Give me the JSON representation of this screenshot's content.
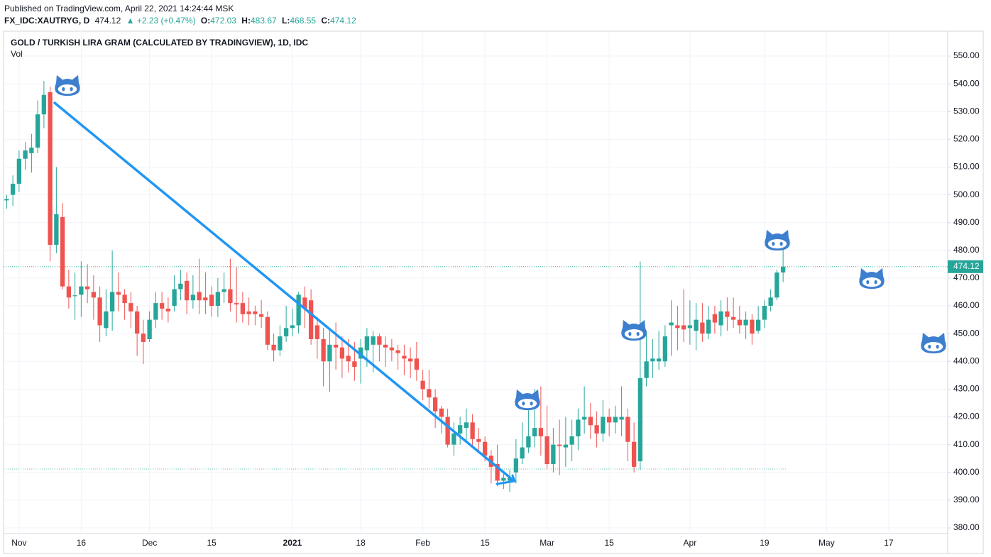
{
  "header": {
    "published": "Published on TradingView.com, April 22, 2021 14:24:44 MSK",
    "symbol": "FX_IDC:XAUTRYG, D",
    "price": "474.12",
    "change": "▲ +2.23 (+0.47%)",
    "o_label": "O:",
    "o": "472.03",
    "h_label": "H:",
    "h": "483.67",
    "l_label": "L:",
    "l": "468.55",
    "c_label": "C:",
    "c": "474.12"
  },
  "chart_data": {
    "type": "candlestick",
    "title": "GOLD / TURKISH LIRA GRAM (CALCULATED BY TRADINGVIEW), 1D, IDC",
    "subtitle": "Vol",
    "up_color": "#26a69a",
    "down_color": "#ef5350",
    "categories": [
      null,
      null,
      "Nov",
      null,
      null,
      null,
      null,
      null,
      null,
      null,
      null,
      null,
      "16",
      null,
      null,
      null,
      null,
      null,
      null,
      null,
      null,
      null,
      null,
      "Dec",
      null,
      null,
      null,
      null,
      null,
      null,
      null,
      null,
      null,
      "15",
      null,
      null,
      null,
      null,
      null,
      null,
      null,
      null,
      null,
      null,
      null,
      null,
      "2021",
      null,
      null,
      null,
      null,
      null,
      null,
      null,
      null,
      null,
      null,
      "18",
      null,
      null,
      null,
      null,
      null,
      null,
      null,
      null,
      null,
      "Feb",
      null,
      null,
      null,
      null,
      null,
      null,
      null,
      null,
      null,
      "15",
      null,
      null,
      null,
      null,
      null,
      null,
      null,
      null,
      null,
      "Mar",
      null,
      null,
      null,
      null,
      null,
      null,
      null,
      null,
      null,
      "15",
      null,
      null,
      null,
      null,
      null,
      null,
      null,
      null,
      null,
      null,
      null,
      null,
      "Apr",
      null,
      null,
      null,
      null,
      null,
      null,
      null,
      null,
      null,
      null,
      null,
      "19",
      null,
      null,
      null,
      null,
      null,
      null,
      null,
      null,
      null,
      "May",
      null,
      null,
      null,
      null,
      null,
      null,
      null,
      null,
      null,
      "17",
      null,
      null,
      null,
      null,
      null,
      null,
      null,
      null,
      null
    ],
    "open": [
      498,
      500,
      504,
      513,
      515,
      517,
      529,
      537,
      482,
      492,
      467,
      463.5,
      464,
      467,
      465,
      463,
      452,
      458,
      465,
      464,
      461,
      458,
      450,
      448,
      455,
      461,
      459,
      460,
      466,
      469,
      462,
      465,
      463,
      464,
      460,
      465,
      466,
      461,
      461,
      458,
      458,
      457,
      456,
      446,
      444,
      449,
      452,
      453,
      463,
      462,
      453,
      448,
      440,
      446,
      445,
      442,
      440,
      441,
      444,
      446,
      449,
      446,
      445,
      444,
      442,
      441,
      441,
      433,
      430,
      427,
      423,
      420,
      410,
      414,
      416,
      418,
      412,
      411,
      406,
      403,
      397,
      397,
      400,
      405,
      409,
      413,
      416,
      413,
      403,
      410,
      409,
      410,
      413,
      419,
      420,
      417,
      414,
      420,
      418,
      419,
      420,
      411,
      404,
      434,
      440,
      440,
      440,
      453,
      453,
      453,
      452,
      451,
      454,
      450,
      457,
      453,
      458,
      456,
      455,
      453,
      455,
      451,
      455,
      460,
      463,
      472.03,
      null,
      null,
      null,
      null,
      null,
      null,
      null,
      null,
      null,
      null,
      null,
      null,
      null,
      null,
      null,
      null,
      null,
      null,
      null,
      null,
      null,
      null,
      null,
      null,
      null,
      null
    ],
    "high": [
      500,
      507,
      516,
      519,
      522,
      534,
      541,
      539,
      510,
      497,
      473,
      472,
      476,
      475,
      471,
      467,
      466,
      480,
      472,
      466,
      465,
      460,
      455,
      458,
      465,
      465,
      463,
      471,
      473,
      472,
      471,
      477,
      472,
      467,
      470,
      472,
      477,
      474,
      465,
      463,
      460,
      462,
      458,
      450,
      453,
      460,
      459,
      465,
      467,
      466,
      456,
      452,
      452,
      454,
      449,
      448,
      447,
      448,
      452,
      451,
      450,
      449,
      448,
      446,
      446,
      445,
      447,
      437,
      437,
      430,
      424,
      423,
      418,
      420,
      423,
      421,
      416,
      413,
      408,
      410,
      400,
      401,
      412,
      418,
      426,
      430,
      431,
      424,
      416,
      419,
      420,
      419,
      423,
      431,
      425,
      422,
      426,
      423,
      424,
      431,
      423,
      418,
      476,
      451,
      448,
      451,
      453,
      462,
      460,
      466,
      462,
      461,
      461,
      460,
      460,
      462,
      463,
      463,
      460,
      458,
      457,
      460,
      462,
      466,
      473,
      483.67,
      null,
      null,
      null,
      null,
      null,
      null,
      null,
      null,
      null,
      null,
      null,
      null,
      null,
      null,
      null,
      null,
      null,
      null,
      null,
      null,
      null,
      null,
      null,
      null,
      null,
      null
    ],
    "low": [
      495,
      496,
      501,
      509,
      508,
      515,
      524,
      476,
      479,
      466,
      459,
      455,
      456,
      461,
      455,
      447,
      449,
      451,
      458,
      455,
      452,
      442,
      439,
      447,
      452,
      455,
      454,
      458,
      462,
      457,
      459,
      457,
      457,
      456,
      456,
      461,
      458,
      454,
      454,
      453,
      453,
      452,
      444,
      440,
      442,
      447,
      449,
      450,
      452,
      446,
      441,
      431,
      429,
      437,
      434,
      436,
      433,
      432,
      438,
      436,
      440,
      438,
      440,
      437,
      435,
      434,
      433,
      426,
      423,
      416,
      414,
      409,
      406,
      410,
      411,
      409,
      407,
      404,
      396,
      395,
      394,
      393,
      396,
      403,
      407,
      409,
      406,
      401,
      400,
      399,
      402,
      404,
      408,
      414,
      412,
      409,
      411,
      413,
      414,
      413,
      404,
      400,
      401,
      431,
      434,
      437,
      438,
      442,
      444,
      447,
      446,
      444,
      447,
      448,
      450,
      449,
      451,
      452,
      450,
      448,
      446,
      450,
      452,
      458,
      462,
      468.55,
      null,
      null,
      null,
      null,
      null,
      null,
      null,
      null,
      null,
      null,
      null,
      null,
      null,
      null,
      null,
      null,
      null,
      null,
      null,
      null,
      null,
      null,
      null,
      null,
      null,
      null
    ],
    "close": [
      498.5,
      504,
      513,
      516,
      517,
      529,
      536,
      482,
      493,
      467,
      463,
      463.8,
      467,
      466,
      463,
      453,
      458,
      465,
      464,
      461,
      458,
      450,
      447,
      455,
      461,
      459,
      458,
      466,
      468,
      462,
      464,
      462,
      462,
      460,
      465,
      466,
      461,
      460.5,
      457,
      457,
      457,
      456,
      446,
      444,
      449,
      452,
      453,
      464,
      459,
      448,
      448,
      440,
      446,
      445,
      441,
      440,
      438,
      445,
      449,
      449,
      446,
      445,
      444,
      443,
      441,
      440,
      437,
      430,
      427,
      422,
      420,
      410,
      414,
      417,
      418,
      412,
      411,
      406,
      402,
      397,
      398,
      398,
      405,
      409,
      413,
      416,
      413,
      403,
      410,
      409.5,
      410,
      413,
      419,
      420,
      417,
      414,
      420,
      418,
      420,
      420,
      411,
      402,
      434,
      440,
      441,
      441,
      449,
      454,
      452,
      451.5,
      453,
      455,
      450,
      455,
      454,
      458,
      456,
      455,
      453,
      455,
      450,
      455,
      460,
      463,
      472,
      474.12,
      null,
      null,
      null,
      null,
      null,
      null,
      null,
      null,
      null,
      null,
      null,
      null,
      null,
      null,
      null,
      null,
      null,
      null,
      null,
      null,
      null,
      null,
      null,
      null,
      null,
      null
    ],
    "ylim": [
      377.95,
      558.95
    ],
    "yticks": [
      {
        "value": 380,
        "label": "380.00"
      },
      {
        "value": 390,
        "label": "390.00"
      },
      {
        "value": 400,
        "label": "400.00"
      },
      {
        "value": 410,
        "label": "410.00"
      },
      {
        "value": 420,
        "label": "420.00"
      },
      {
        "value": 430,
        "label": "430.00"
      },
      {
        "value": 440,
        "label": "440.00"
      },
      {
        "value": 450,
        "label": "450.00"
      },
      {
        "value": 460,
        "label": "460.00"
      },
      {
        "value": 470,
        "label": "470.00"
      },
      {
        "value": 480,
        "label": "480.00"
      },
      {
        "value": 490,
        "label": "490.00"
      },
      {
        "value": 500,
        "label": "500.00"
      },
      {
        "value": 510,
        "label": "510.00"
      },
      {
        "value": 520,
        "label": "520.00"
      },
      {
        "value": 530,
        "label": "530.00"
      },
      {
        "value": 540,
        "label": "540.00"
      },
      {
        "value": 550,
        "label": "550.00"
      }
    ],
    "grid": true
  }
}
